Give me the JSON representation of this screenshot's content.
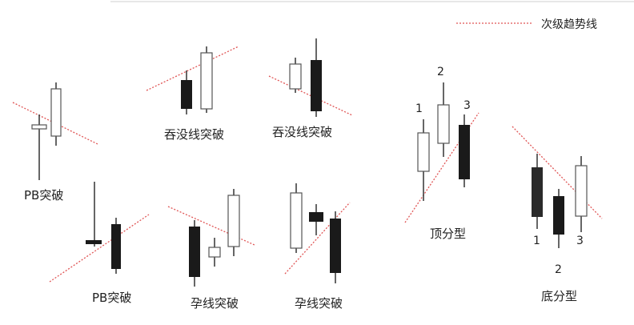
{
  "legend": {
    "label": "次级趋势线",
    "line_color": "#e05555"
  },
  "colors": {
    "wick": "#333333",
    "filled": "#1a1a1a",
    "hollow_border": "#555555",
    "trend": "#e05555"
  },
  "labels": {
    "pb_top": "PB突破",
    "pb_bottom": "PB突破",
    "engulf_1": "吞没线突破",
    "engulf_2": "吞没线突破",
    "harami_1": "孕线突破",
    "harami_2": "孕线突破",
    "top_fractal": "顶分型",
    "bottom_fractal": "底分型"
  },
  "numbers": {
    "top_1": "1",
    "top_2": "2",
    "top_3": "3",
    "bot_1": "1",
    "bot_2": "2",
    "bot_3": "3"
  }
}
